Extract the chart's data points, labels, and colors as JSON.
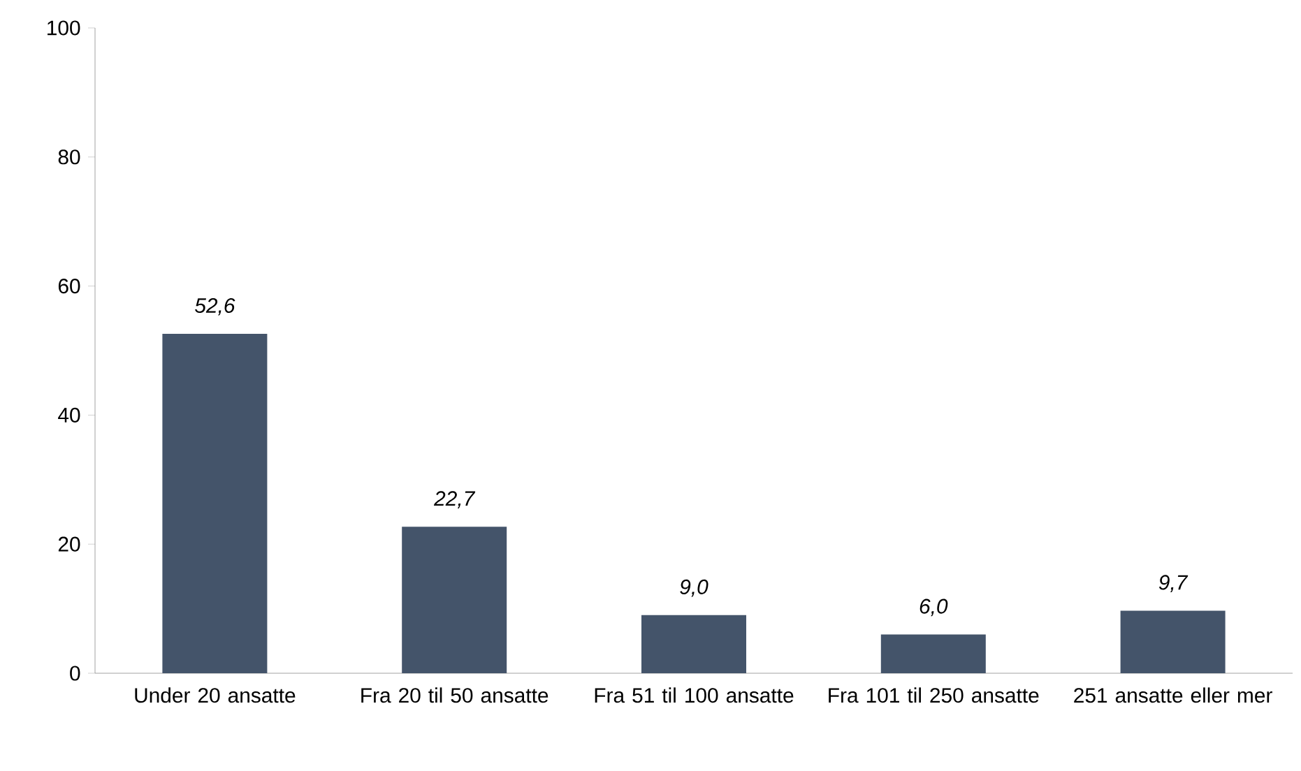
{
  "chart_data": {
    "type": "bar",
    "categories": [
      "Under 20 ansatte",
      "Fra 20 til 50 ansatte",
      "Fra 51 til 100 ansatte",
      "Fra 101 til 250 ansatte",
      "251 ansatte eller mer"
    ],
    "values": [
      52.6,
      22.7,
      9.0,
      6.0,
      9.7
    ],
    "value_labels": [
      "52,6",
      "22,7",
      "9,0",
      "6,0",
      "9,7"
    ],
    "color": "#44546a",
    "ylim": [
      0,
      100
    ],
    "yticks": [
      0,
      20,
      40,
      60,
      80,
      100
    ]
  }
}
